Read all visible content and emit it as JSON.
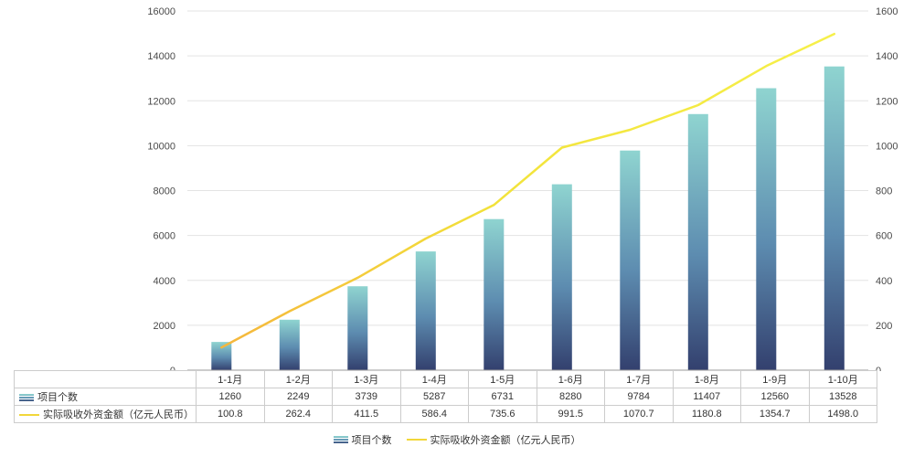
{
  "chart_data": {
    "type": "bar",
    "subtype": "bar+line combo with data table",
    "title": "",
    "categories": [
      "1-1月",
      "1-2月",
      "1-3月",
      "1-4月",
      "1-5月",
      "1-6月",
      "1-7月",
      "1-8月",
      "1-9月",
      "1-10月"
    ],
    "series": [
      {
        "name": "项目个数",
        "type": "bar",
        "axis": "left",
        "values": [
          1260,
          2249,
          3739,
          5287,
          6731,
          8280,
          9784,
          11407,
          12560,
          13528
        ]
      },
      {
        "name": "实际吸收外资金额（亿元人民币）",
        "type": "line",
        "axis": "right",
        "values": [
          100.8,
          262.4,
          411.5,
          586.4,
          735.6,
          991.5,
          1070.7,
          1180.8,
          1354.7,
          1498.0
        ]
      }
    ],
    "left_axis": {
      "min": 0,
      "max": 16000,
      "step": 2000
    },
    "right_axis": {
      "min": 0,
      "max": 1600,
      "step": 200
    },
    "grid": true,
    "legend_position": "bottom",
    "colors": {
      "bar_gradient_top": "#8fd4d0",
      "bar_gradient_mid": "#5d8cb0",
      "bar_gradient_bottom": "#33406e",
      "line_start": "#f5b63c",
      "line_end": "#f6f04a",
      "grid_line": "#e3e3e3",
      "axis_line": "#9a9a9a"
    }
  }
}
